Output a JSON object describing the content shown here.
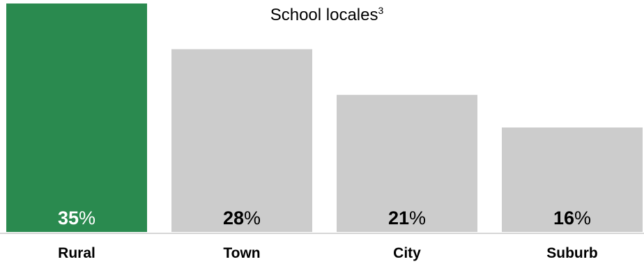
{
  "chart_data": {
    "type": "bar",
    "title": "School locales",
    "title_superscript": "3",
    "categories": [
      "Rural",
      "Town",
      "City",
      "Suburb"
    ],
    "values": [
      35,
      28,
      21,
      16
    ],
    "value_unit": "%",
    "ylim": [
      0,
      35
    ],
    "grid": false,
    "legend": "none",
    "colors": {
      "highlight": "#2a8a4f",
      "default": "#cccccc",
      "highlight_label": "#ffffff",
      "default_label": "#000000",
      "baseline": "#c8c8c8"
    },
    "highlight_index": 0
  }
}
